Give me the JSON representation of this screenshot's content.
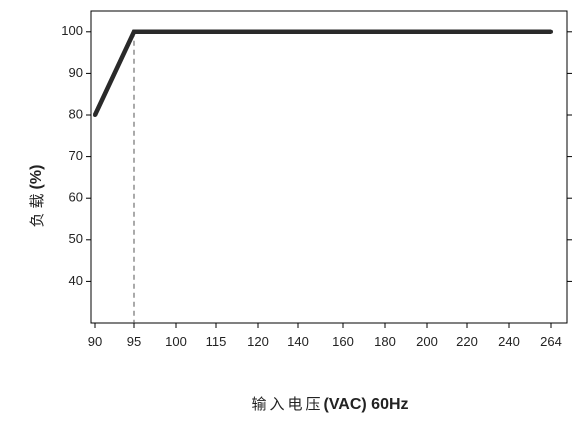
{
  "chart_data": {
    "type": "line",
    "x_categories": [
      "90",
      "95",
      "100",
      "115",
      "120",
      "140",
      "160",
      "180",
      "200",
      "220",
      "240",
      "264"
    ],
    "series": [
      {
        "x": [
          "90",
          "95",
          "264"
        ],
        "y": [
          80,
          100,
          100
        ]
      }
    ],
    "reference_line": {
      "x": "95",
      "style": "dashed"
    },
    "y_ticks": [
      40,
      50,
      60,
      70,
      80,
      90,
      100
    ],
    "ylim": [
      30,
      105
    ],
    "xlabel": "输入电压(VAC) 60Hz",
    "xlabel_cjk": "输入电压",
    "xlabel_latin": "(VAC) 60Hz",
    "ylabel": "负载(%)",
    "ylabel_cjk": "负载",
    "ylabel_latin": "(%)",
    "grid": false,
    "colors": {
      "line": "#2a2a2a",
      "axis": "#000000",
      "dashed": "#555555"
    }
  }
}
